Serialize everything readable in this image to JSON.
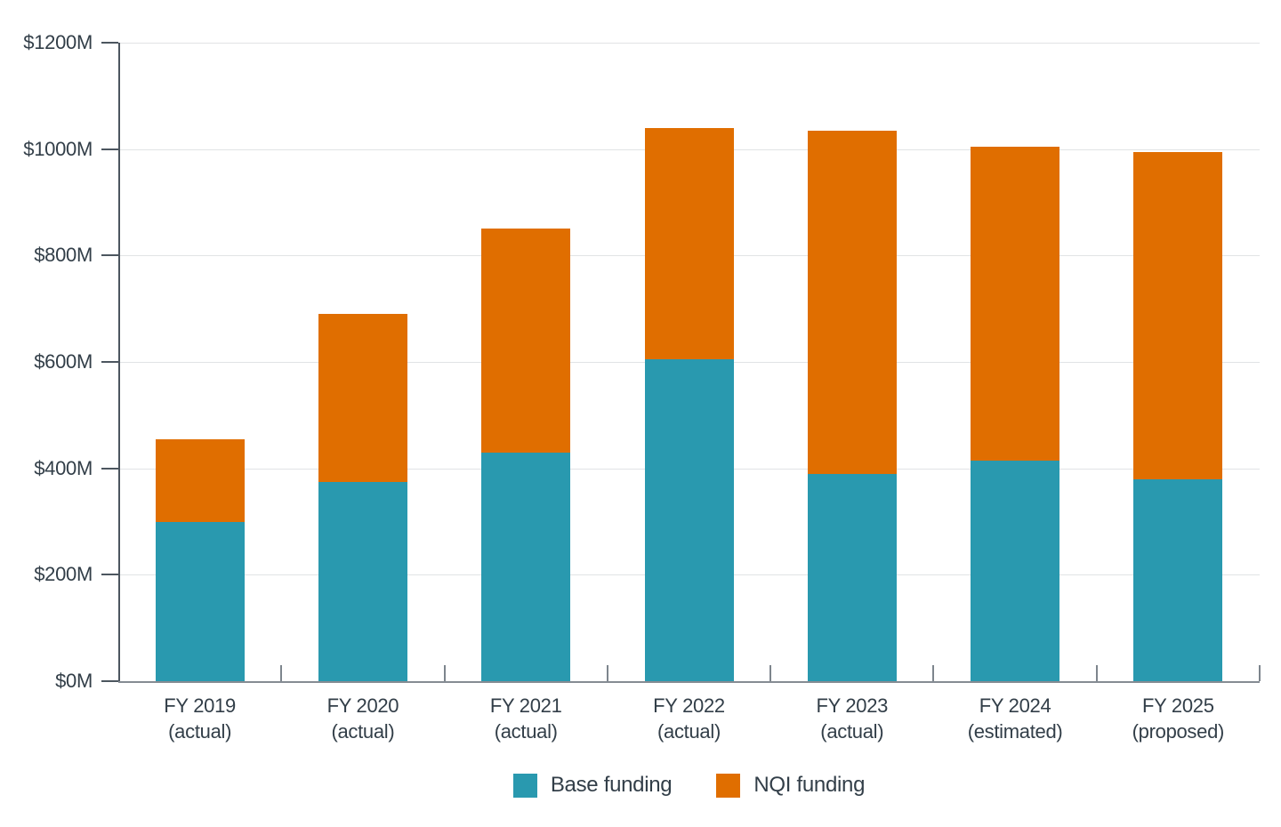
{
  "chart_data": {
    "type": "bar",
    "stacked": true,
    "title": "",
    "categories": [
      {
        "label": "FY 2019",
        "qualifier": "(actual)"
      },
      {
        "label": "FY 2020",
        "qualifier": "(actual)"
      },
      {
        "label": "FY 2021",
        "qualifier": "(actual)"
      },
      {
        "label": "FY 2022",
        "qualifier": "(actual)"
      },
      {
        "label": "FY 2023",
        "qualifier": "(actual)"
      },
      {
        "label": "FY 2024",
        "qualifier": "(estimated)"
      },
      {
        "label": "FY 2025",
        "qualifier": "(proposed)"
      }
    ],
    "series": [
      {
        "name": "Base funding",
        "color": "#2999AF",
        "values": [
          300,
          375,
          430,
          605,
          390,
          415,
          380
        ]
      },
      {
        "name": "NQI funding",
        "color": "#E06E00",
        "values": [
          155,
          315,
          420,
          435,
          645,
          590,
          615
        ]
      }
    ],
    "y_axis": {
      "min": 0,
      "max": 1200,
      "step": 200,
      "tick_labels": [
        "$0M",
        "$200M",
        "$400M",
        "$600M",
        "$800M",
        "$1000M",
        "$1200M"
      ]
    },
    "xlabel": "",
    "ylabel": "",
    "grid": true,
    "legend_position": "bottom",
    "colors": {
      "background": "#FFFFFF",
      "gridline": "#E1E3E5",
      "y_axis_line": "#4C565F",
      "x_axis_line": "#858C93",
      "text": "#323E48"
    }
  }
}
